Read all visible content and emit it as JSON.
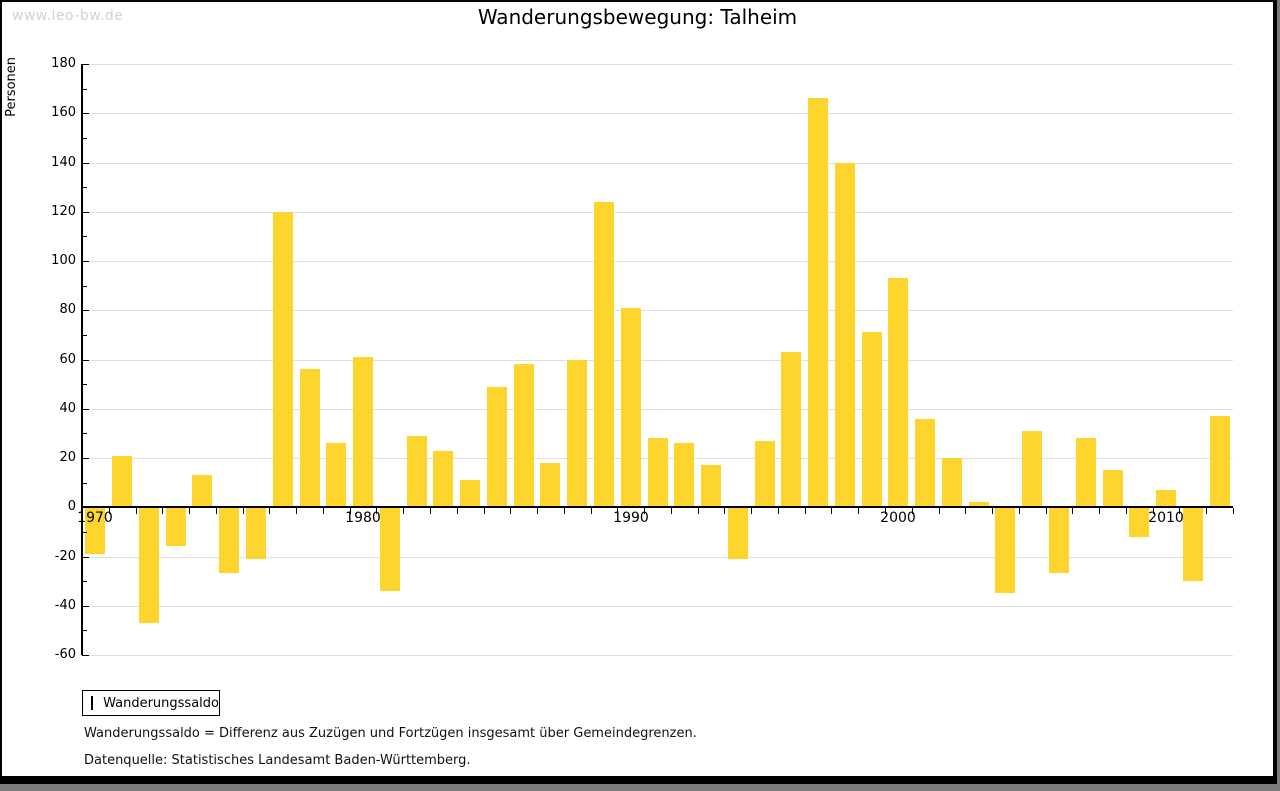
{
  "watermark": "www.leo-bw.de",
  "title": "Wanderungsbewegung: Talheim",
  "legend": {
    "label": "Wanderungssaldo"
  },
  "footnotes": {
    "definition": "Wanderungssaldo = Differenz aus Zuzügen und Fortzügen insgesamt über Gemeindegrenzen.",
    "source": "Datenquelle: Statistisches Landesamt Baden-Württemberg."
  },
  "colors": {
    "bar": "#fdd52d",
    "grid": "#dedede",
    "axis": "#000000",
    "watermark": "#d2d2d2"
  },
  "chart_data": {
    "type": "bar",
    "title": "Wanderungsbewegung: Talheim",
    "ylabel": "Personen",
    "xlabel": "",
    "ylim": [
      -60,
      180
    ],
    "ytick_step": 20,
    "yminor_step": 10,
    "grid": true,
    "legend_position": "bottom-left",
    "series_name": "Wanderungssaldo",
    "x": [
      1970,
      1971,
      1972,
      1973,
      1974,
      1975,
      1976,
      1977,
      1978,
      1979,
      1980,
      1981,
      1982,
      1983,
      1984,
      1985,
      1986,
      1987,
      1988,
      1989,
      1990,
      1991,
      1992,
      1993,
      1994,
      1995,
      1996,
      1997,
      1998,
      1999,
      2000,
      2001,
      2002,
      2003,
      2004,
      2005,
      2006,
      2007,
      2008,
      2009,
      2010,
      2011,
      2012
    ],
    "values": [
      -19,
      21,
      -47,
      -16,
      13,
      -27,
      -21,
      120,
      56,
      26,
      61,
      -34,
      29,
      23,
      11,
      49,
      58,
      18,
      60,
      124,
      81,
      28,
      26,
      17,
      -21,
      27,
      63,
      166,
      140,
      71,
      93,
      36,
      20,
      2,
      -35,
      31,
      -27,
      28,
      15,
      -12,
      7,
      -30,
      37
    ],
    "xtick_labels": [
      1970,
      1980,
      1990,
      2000,
      2010
    ]
  }
}
